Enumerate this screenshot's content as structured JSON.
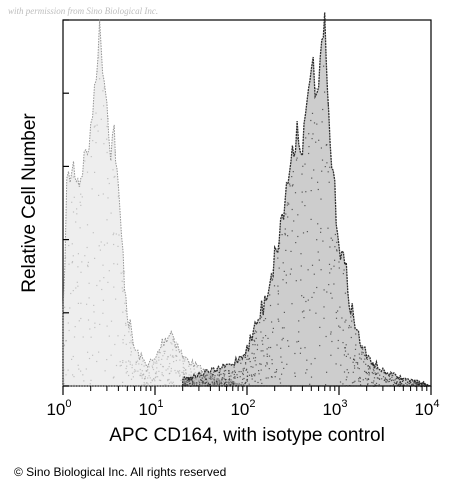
{
  "watermark": "with permission from Sino Biological Inc.",
  "copyright": "© Sino Biological Inc. All rights reserved",
  "chart_data": {
    "type": "area",
    "title": "",
    "xlabel": "APC CD164, with isotype control",
    "ylabel": "Relative Cell Number",
    "x_scale": "log",
    "xlim": [
      1,
      10000
    ],
    "ylim": [
      0,
      1
    ],
    "x_ticks": [
      {
        "value": 1,
        "base": "10",
        "exp": "0"
      },
      {
        "value": 10,
        "base": "10",
        "exp": "1"
      },
      {
        "value": 100,
        "base": "10",
        "exp": "2"
      },
      {
        "value": 1000,
        "base": "10",
        "exp": "3"
      },
      {
        "value": 10000,
        "base": "10",
        "exp": "4"
      }
    ],
    "y_ticks": [
      0,
      0.2,
      0.4,
      0.6,
      0.8,
      1.0
    ],
    "y_tick_labels_shown": false,
    "grid": false,
    "legend": "none",
    "series": [
      {
        "role": "isotype control",
        "color": "#8a8a8a",
        "x": [
          1.0,
          1.1,
          1.3,
          1.5,
          1.7,
          2.0,
          2.2,
          2.5,
          2.8,
          3.0,
          3.3,
          3.6,
          4.0,
          4.5,
          5.0,
          6.0,
          8.0,
          10,
          12,
          15,
          20,
          30,
          50,
          100
        ],
        "values": [
          0.18,
          0.55,
          0.6,
          0.56,
          0.62,
          0.68,
          0.82,
          0.97,
          0.85,
          0.78,
          0.65,
          0.7,
          0.52,
          0.35,
          0.2,
          0.1,
          0.06,
          0.07,
          0.12,
          0.15,
          0.08,
          0.05,
          0.02,
          0.0
        ]
      },
      {
        "role": "APC CD164",
        "color": "#1a1a1a",
        "x": [
          20,
          40,
          70,
          100,
          150,
          200,
          250,
          300,
          350,
          400,
          450,
          500,
          550,
          600,
          650,
          700,
          750,
          800,
          900,
          1000,
          1200,
          1500,
          2000,
          3000,
          5000,
          8000,
          10000
        ],
        "values": [
          0.02,
          0.04,
          0.06,
          0.1,
          0.22,
          0.35,
          0.48,
          0.62,
          0.7,
          0.66,
          0.75,
          0.9,
          0.82,
          0.78,
          0.94,
          0.98,
          0.8,
          0.66,
          0.52,
          0.4,
          0.3,
          0.16,
          0.08,
          0.04,
          0.02,
          0.01,
          0.0
        ]
      }
    ]
  }
}
